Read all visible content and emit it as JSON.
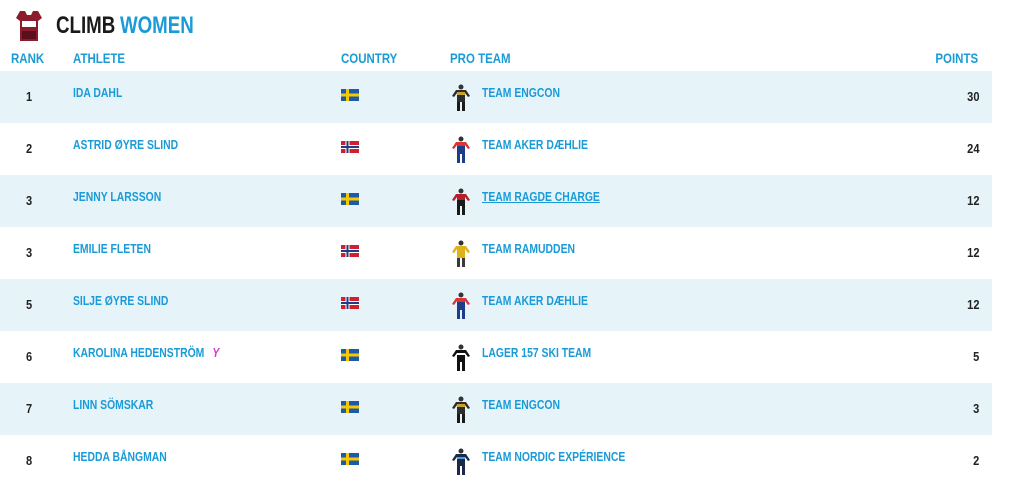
{
  "header": {
    "title_main": "CLIMB",
    "title_sub": "WOMEN",
    "logo_icon": "jersey-logo-icon"
  },
  "columns": {
    "rank": "RANK",
    "athlete": "ATHLETE",
    "country": "COUNTRY",
    "pro_team": "PRO TEAM",
    "points": "POINTS"
  },
  "colors": {
    "accent": "#1a9bd7",
    "row_alt": "#e6f4fa",
    "young_rider": "#d63ac8"
  },
  "rows": [
    {
      "rank": "1",
      "athlete": "IDA DAHL",
      "country_icon": "sweden-flag-icon",
      "team_icon": "team-engcon-jersey-icon",
      "team": "TEAM ENGCON",
      "points": "30"
    },
    {
      "rank": "2",
      "athlete": "ASTRID ØYRE SLIND",
      "country_icon": "norway-flag-icon",
      "team_icon": "team-aker-daehlie-jersey-icon",
      "team": "TEAM AKER DÆHLIE",
      "points": "24"
    },
    {
      "rank": "3",
      "athlete": "JENNY LARSSON",
      "country_icon": "sweden-flag-icon",
      "team_icon": "team-ragde-charge-jersey-icon",
      "team": "TEAM RAGDE CHARGE",
      "points": "12"
    },
    {
      "rank": "3",
      "athlete": "EMILIE FLETEN",
      "country_icon": "norway-flag-icon",
      "team_icon": "team-ramudden-jersey-icon",
      "team": "TEAM RAMUDDEN",
      "points": "12"
    },
    {
      "rank": "5",
      "athlete": "SILJE ØYRE SLIND",
      "country_icon": "norway-flag-icon",
      "team_icon": "team-aker-daehlie-jersey-icon",
      "team": "TEAM AKER DÆHLIE",
      "points": "12"
    },
    {
      "rank": "6",
      "athlete": "KAROLINA HEDENSTRÖM",
      "athlete_badge": "Y",
      "country_icon": "sweden-flag-icon",
      "team_icon": "lager-157-jersey-icon",
      "team": "LAGER 157 SKI TEAM",
      "points": "5"
    },
    {
      "rank": "7",
      "athlete": "LINN SÖMSKAR",
      "country_icon": "sweden-flag-icon",
      "team_icon": "team-engcon-jersey-icon",
      "team": "TEAM ENGCON",
      "points": "3"
    },
    {
      "rank": "8",
      "athlete": "HEDDA BÅNGMAN",
      "country_icon": "sweden-flag-icon",
      "team_icon": "team-nordic-experience-jersey-icon",
      "team": "TEAM NORDIC EXPÉRIENCE",
      "points": "2"
    }
  ]
}
